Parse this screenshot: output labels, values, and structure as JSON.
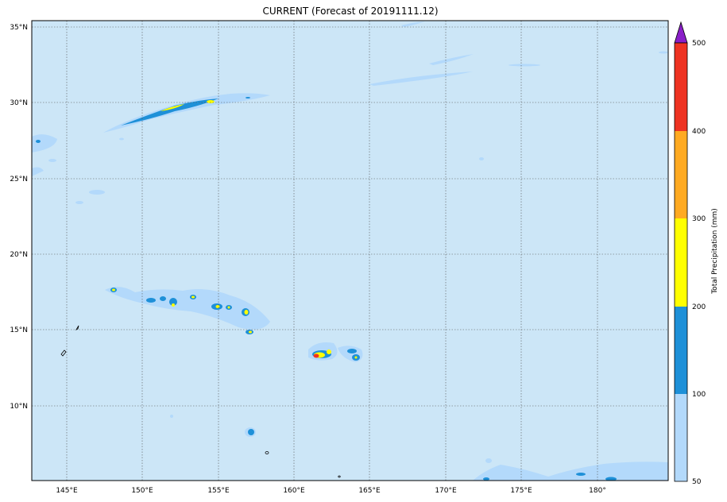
{
  "title": "CURRENT (Forecast of 20191111.12)",
  "colorbar": {
    "label": "Total Precipitation (mm)",
    "ticks": [
      "50",
      "100",
      "200",
      "300",
      "400",
      "500"
    ],
    "colors": [
      "#b3d9fb",
      "#1e90d8",
      "#ffff00",
      "#ffaa22",
      "#ee3322"
    ],
    "extend_color": "#8a1fc8"
  },
  "map": {
    "background": "#cce6f7",
    "grid": "on",
    "lat_labels": [
      "35°N",
      "30°N",
      "25°N",
      "20°N",
      "15°N",
      "10°N"
    ],
    "lon_labels": [
      "145°E",
      "150°E",
      "155°E",
      "160°E",
      "165°E",
      "170°E",
      "175°E",
      "180°"
    ]
  }
}
